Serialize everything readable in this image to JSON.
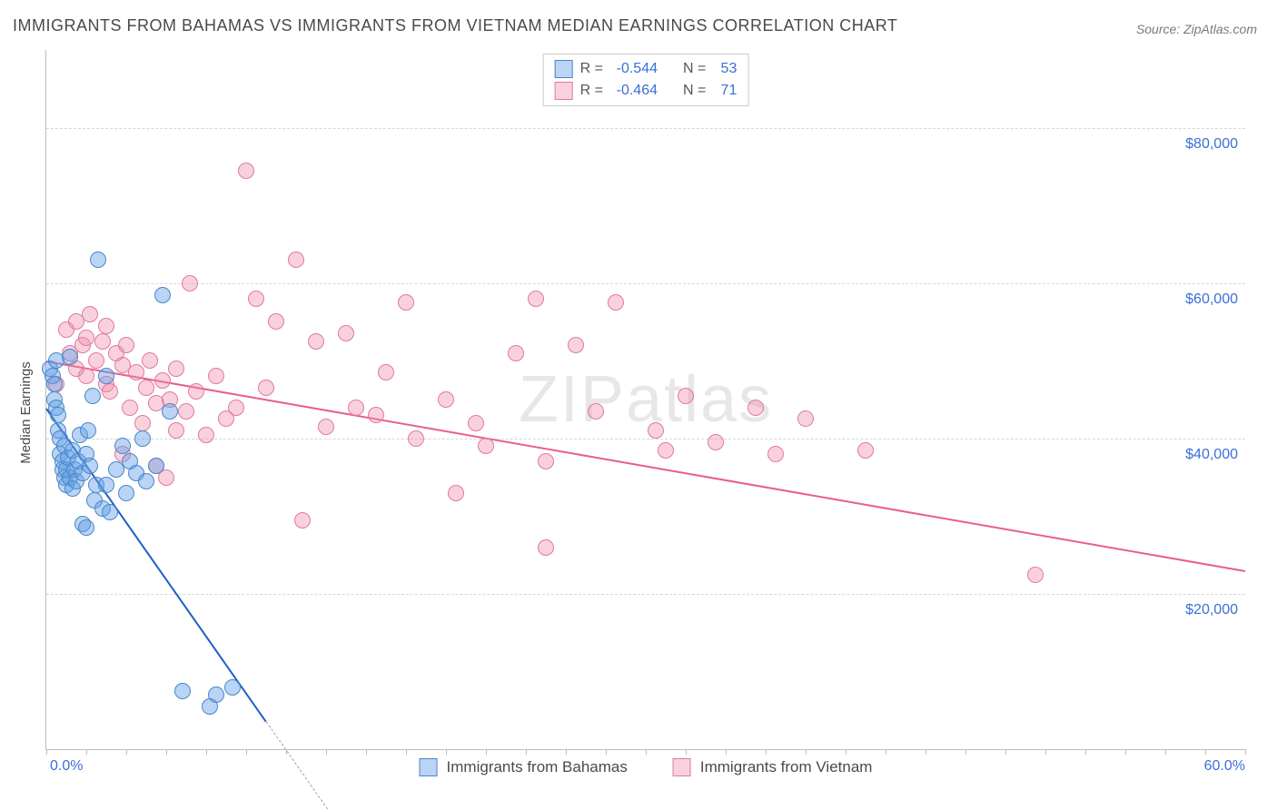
{
  "title": "IMMIGRANTS FROM BAHAMAS VS IMMIGRANTS FROM VIETNAM MEDIAN EARNINGS CORRELATION CHART",
  "source_label": "Source: ZipAtlas.com",
  "ylabel": "Median Earnings",
  "watermark": "ZIPatlas",
  "colors": {
    "blue_fill": "rgba(100,160,230,0.45)",
    "blue_stroke": "#4a86c9",
    "pink_fill": "rgba(240,140,170,0.40)",
    "pink_stroke": "#e07a9e",
    "blue_line": "#1f5fc4",
    "pink_line": "#e85f8a",
    "grid": "#d6d6d6",
    "axis": "#bdbdbd",
    "tick_text": "#3b6fd6"
  },
  "chart": {
    "type": "scatter",
    "xlim": [
      0,
      60
    ],
    "ylim": [
      0,
      90000
    ],
    "y_gridlines": [
      20000,
      40000,
      60000,
      80000
    ],
    "y_tick_labels": [
      "$20,000",
      "$40,000",
      "$60,000",
      "$80,000"
    ],
    "x_ticks_minor": [
      0,
      2,
      4,
      6,
      8,
      10,
      12,
      14,
      16,
      18,
      20,
      22,
      24,
      26,
      28,
      30,
      32,
      34,
      36,
      38,
      40,
      42,
      44,
      46,
      48,
      50,
      52,
      54,
      56,
      58,
      60
    ],
    "x_tick_labels": {
      "left": "0.0%",
      "right": "60.0%"
    },
    "marker_radius": 9
  },
  "legend_top": {
    "rows": [
      {
        "swatch_fill": "rgba(100,160,230,0.45)",
        "swatch_stroke": "#4a86c9",
        "R": "-0.544",
        "N": "53"
      },
      {
        "swatch_fill": "rgba(240,140,170,0.40)",
        "swatch_stroke": "#e07a9e",
        "R": "-0.464",
        "N": "71"
      }
    ],
    "r_label": "R =",
    "n_label": "N ="
  },
  "legend_bottom": [
    {
      "swatch_fill": "rgba(100,160,230,0.45)",
      "swatch_stroke": "#4a86c9",
      "label": "Immigrants from Bahamas"
    },
    {
      "swatch_fill": "rgba(240,140,170,0.40)",
      "swatch_stroke": "#e07a9e",
      "label": "Immigrants from Vietnam"
    }
  ],
  "series": {
    "bahamas": {
      "color_fill": "rgba(100,160,230,0.45)",
      "color_stroke": "#4a86c9",
      "trend": {
        "x1": 0,
        "y1": 44000,
        "x2": 12,
        "y2": 0,
        "color": "#1f5fc4",
        "dashed_after_x": 11
      },
      "points": [
        [
          0.2,
          49000
        ],
        [
          0.3,
          48000
        ],
        [
          0.4,
          47000
        ],
        [
          0.4,
          45000
        ],
        [
          0.5,
          50000
        ],
        [
          0.5,
          44000
        ],
        [
          0.6,
          41000
        ],
        [
          0.6,
          43000
        ],
        [
          0.7,
          38000
        ],
        [
          0.7,
          40000
        ],
        [
          0.8,
          36000
        ],
        [
          0.8,
          37000
        ],
        [
          0.9,
          35000
        ],
        [
          0.9,
          39000
        ],
        [
          1.0,
          34000
        ],
        [
          1.0,
          36000
        ],
        [
          1.1,
          37500
        ],
        [
          1.2,
          35000
        ],
        [
          1.2,
          50500
        ],
        [
          1.3,
          38500
        ],
        [
          1.3,
          33500
        ],
        [
          1.4,
          36000
        ],
        [
          1.5,
          34500
        ],
        [
          1.6,
          37000
        ],
        [
          1.7,
          40500
        ],
        [
          1.8,
          35500
        ],
        [
          2.0,
          38000
        ],
        [
          2.1,
          41000
        ],
        [
          2.2,
          36500
        ],
        [
          2.3,
          45500
        ],
        [
          2.4,
          32000
        ],
        [
          2.5,
          34000
        ],
        [
          2.8,
          31000
        ],
        [
          3.0,
          34000
        ],
        [
          3.0,
          48000
        ],
        [
          3.2,
          30500
        ],
        [
          3.5,
          36000
        ],
        [
          3.8,
          39000
        ],
        [
          4.0,
          33000
        ],
        [
          4.2,
          37000
        ],
        [
          4.5,
          35500
        ],
        [
          4.8,
          40000
        ],
        [
          5.0,
          34500
        ],
        [
          5.5,
          36500
        ],
        [
          5.8,
          58500
        ],
        [
          6.2,
          43500
        ],
        [
          1.8,
          29000
        ],
        [
          2.0,
          28500
        ],
        [
          2.6,
          63000
        ],
        [
          6.8,
          7500
        ],
        [
          8.5,
          7000
        ],
        [
          9.3,
          8000
        ],
        [
          8.2,
          5500
        ]
      ]
    },
    "vietnam": {
      "color_fill": "rgba(240,140,170,0.40)",
      "color_stroke": "#e07a9e",
      "trend": {
        "x1": 0,
        "y1": 50000,
        "x2": 60,
        "y2": 23000,
        "color": "#e85f8a"
      },
      "points": [
        [
          0.5,
          47000
        ],
        [
          1.0,
          54000
        ],
        [
          1.2,
          51000
        ],
        [
          1.5,
          55000
        ],
        [
          1.5,
          49000
        ],
        [
          1.8,
          52000
        ],
        [
          2.0,
          53000
        ],
        [
          2.0,
          48000
        ],
        [
          2.2,
          56000
        ],
        [
          2.5,
          50000
        ],
        [
          2.8,
          52500
        ],
        [
          3.0,
          54500
        ],
        [
          3.0,
          47000
        ],
        [
          3.2,
          46000
        ],
        [
          3.5,
          51000
        ],
        [
          3.8,
          49500
        ],
        [
          4.0,
          52000
        ],
        [
          4.2,
          44000
        ],
        [
          4.5,
          48500
        ],
        [
          4.8,
          42000
        ],
        [
          5.0,
          46500
        ],
        [
          5.2,
          50000
        ],
        [
          5.5,
          44500
        ],
        [
          5.8,
          47500
        ],
        [
          6.0,
          35000
        ],
        [
          6.2,
          45000
        ],
        [
          6.5,
          49000
        ],
        [
          6.5,
          41000
        ],
        [
          7.0,
          43500
        ],
        [
          7.2,
          60000
        ],
        [
          7.5,
          46000
        ],
        [
          8.0,
          40500
        ],
        [
          8.5,
          48000
        ],
        [
          9.0,
          42500
        ],
        [
          9.5,
          44000
        ],
        [
          10.0,
          74500
        ],
        [
          10.5,
          58000
        ],
        [
          11.0,
          46500
        ],
        [
          11.5,
          55000
        ],
        [
          12.5,
          63000
        ],
        [
          12.8,
          29500
        ],
        [
          13.5,
          52500
        ],
        [
          14.0,
          41500
        ],
        [
          15.0,
          53500
        ],
        [
          15.5,
          44000
        ],
        [
          16.5,
          43000
        ],
        [
          17.0,
          48500
        ],
        [
          18.0,
          57500
        ],
        [
          18.5,
          40000
        ],
        [
          20.0,
          45000
        ],
        [
          20.5,
          33000
        ],
        [
          21.5,
          42000
        ],
        [
          22.0,
          39000
        ],
        [
          23.5,
          51000
        ],
        [
          24.5,
          58000
        ],
        [
          25.0,
          37000
        ],
        [
          26.5,
          52000
        ],
        [
          27.5,
          43500
        ],
        [
          28.5,
          57500
        ],
        [
          30.5,
          41000
        ],
        [
          31.0,
          38500
        ],
        [
          32.0,
          45500
        ],
        [
          33.5,
          39500
        ],
        [
          35.5,
          44000
        ],
        [
          36.5,
          38000
        ],
        [
          38.0,
          42500
        ],
        [
          25.0,
          26000
        ],
        [
          41.0,
          38500
        ],
        [
          49.5,
          22500
        ],
        [
          5.5,
          36500
        ],
        [
          3.8,
          38000
        ]
      ]
    }
  }
}
